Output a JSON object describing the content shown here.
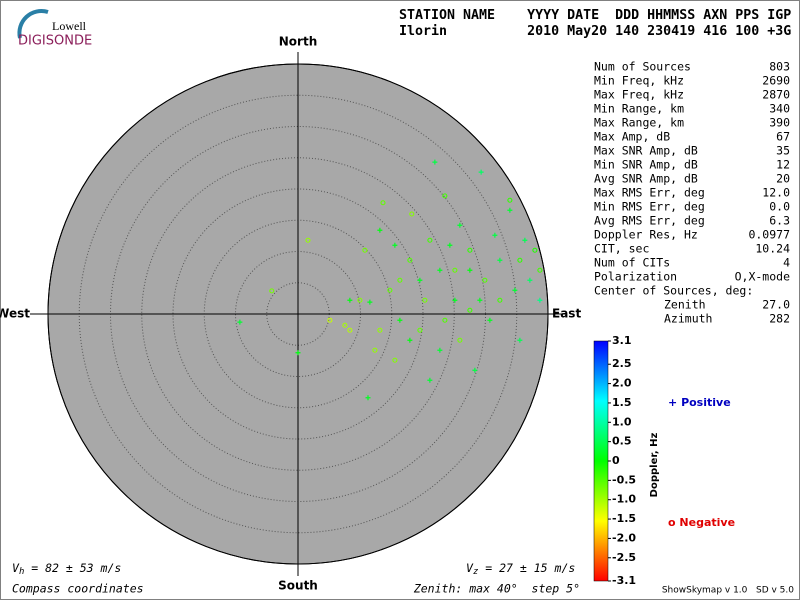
{
  "logo": {
    "top": "Lowell",
    "bottom": "DIGISONDE"
  },
  "header": {
    "line1": "STATION NAME    YYYY DATE  DDD HHMMSS AXN PPS IGP",
    "line2": "Ilorin          2010 May20 140 230419 416 100 +3G"
  },
  "stats": [
    [
      "Num of Sources",
      "803"
    ],
    [
      "Min Freq, kHz",
      "2690"
    ],
    [
      "Max Freq, kHz",
      "2870"
    ],
    [
      "Min Range, km",
      "340"
    ],
    [
      "Max Range, km",
      "390"
    ],
    [
      "Max Amp, dB",
      "67"
    ],
    [
      "Max SNR Amp, dB",
      "35"
    ],
    [
      "Min SNR Amp, dB",
      "12"
    ],
    [
      "Avg SNR Amp, dB",
      "20"
    ],
    [
      "Max RMS Err, deg",
      "12.0"
    ],
    [
      "Min RMS Err, deg",
      "0.0"
    ],
    [
      "Avg RMS Err, deg",
      "6.3"
    ],
    [
      "Doppler Res, Hz",
      "0.0977"
    ],
    [
      "CIT, sec",
      "10.24"
    ],
    [
      "Num of CITs",
      "4"
    ],
    [
      "Polarization",
      "O,X-mode"
    ]
  ],
  "center": {
    "title": "Center of Sources, deg:",
    "rows": [
      [
        "Zenith",
        "27.0"
      ],
      [
        "Azimuth",
        "282"
      ]
    ]
  },
  "footer": {
    "vh": {
      "symbol": "V",
      "sub": "h",
      "text": " = 82 ± 53 m/s"
    },
    "vz": {
      "symbol": "V",
      "sub": "z",
      "text": " = 27 ± 15 m/s"
    },
    "coords": "Compass coordinates",
    "zenith": "Zenith: max 40°  step 5°",
    "version": "ShowSkymap v 1.0   SD v 5.0"
  },
  "chart_data": {
    "type": "skymap",
    "directions": {
      "north": "North",
      "south": "South",
      "west": "West",
      "east": "East"
    },
    "rlim": [
      0,
      40
    ],
    "rticks": [
      5,
      10,
      15,
      20,
      25,
      30,
      35,
      40
    ],
    "fill": "#a8a8a8",
    "colorbar": {
      "label": "Doppler, Hz",
      "lim": [
        -3.1,
        3.1
      ],
      "colors": [
        "#ff0000",
        "#ffff00",
        "#00ff00",
        "#00ffff",
        "#0000ff"
      ],
      "ticks": [
        3.1,
        2.5,
        {
          "value": 2,
          "label": "2.0"
        },
        1.5,
        {
          "value": 1,
          "label": "1.0"
        },
        0.5,
        0,
        -0.5,
        {
          "value": -1,
          "label": "-1.0"
        },
        -1.5,
        {
          "value": -2,
          "label": "-2.0"
        },
        -2.5,
        -3.1
      ]
    },
    "series": [
      {
        "name": "Positive",
        "symbol": "+",
        "color": "#0000c0",
        "x": [
          21.9,
          29.3,
          11.5,
          -9.3,
          0,
          11.2,
          35.5,
          38.7,
          33.9,
          24.3,
          27.5,
          32.3,
          19.5,
          16.3,
          22.7,
          29.1,
          36.3,
          25.9,
          15.5,
          8.3,
          21.1,
          28.3,
          37.1,
          30.7,
          17.9,
          25.1,
          34.7,
          22.7,
          13.1,
          31.5
        ],
        "y": [
          24.3,
          22.7,
          1.9,
          -1.3,
          -6.2,
          -13.4,
          -4.2,
          2.2,
          16.6,
          11,
          7,
          8.6,
          5.4,
          -1,
          -5.8,
          2.2,
          11.8,
          14.2,
          11,
          2.2,
          -10.6,
          -9,
          5.4,
          -1,
          -4.2,
          2.2,
          3.8,
          7,
          13.4,
          12.6
        ],
        "doppler": [
          0.4,
          0.6,
          0.2,
          0.3,
          0.1,
          0.2,
          0.5,
          0.8,
          0.3,
          0.2,
          0.1,
          0.4,
          0.2,
          0.1,
          0.3,
          0.2,
          0.5,
          0.3,
          0.2,
          0.1,
          0.3,
          0.4,
          0.6,
          0.2,
          0.1,
          0.2,
          0.3,
          0.2,
          0.1,
          0.4
        ]
      },
      {
        "name": "Negative",
        "symbol": "o",
        "color": "#e00000",
        "x": [
          13.6,
          18.2,
          23.5,
          33.9,
          1.6,
          -4.2,
          5.1,
          7.5,
          9.9,
          13.1,
          14.7,
          17.9,
          20.3,
          21.1,
          25.1,
          27.5,
          29.9,
          32.3,
          35.5,
          37.9,
          38.7,
          15.5,
          19.5,
          23.5,
          25.9,
          27.5,
          16.3,
          10.7,
          8.3,
          12.3
        ],
        "y": [
          17.8,
          16,
          18.9,
          18.2,
          11.8,
          3.7,
          -1,
          -1.8,
          2.2,
          -2.6,
          3.8,
          8.6,
          2.2,
          11.8,
          7,
          10.2,
          5.4,
          2.2,
          8.6,
          10.2,
          7,
          -7.4,
          -2.6,
          -1,
          -4.2,
          0.6,
          5.4,
          10.2,
          -2.6,
          -5.8
        ],
        "doppler": [
          -0.6,
          -0.8,
          -0.4,
          -0.3,
          -0.9,
          -0.7,
          -1.2,
          -1.0,
          -0.8,
          -0.9,
          -0.6,
          -0.5,
          -0.7,
          -0.4,
          -0.6,
          -0.3,
          -0.5,
          -0.4,
          -0.3,
          -0.2,
          -0.4,
          -0.8,
          -0.6,
          -0.5,
          -0.7,
          -0.4,
          -0.6,
          -0.7,
          -1.1,
          -0.9
        ]
      }
    ]
  }
}
